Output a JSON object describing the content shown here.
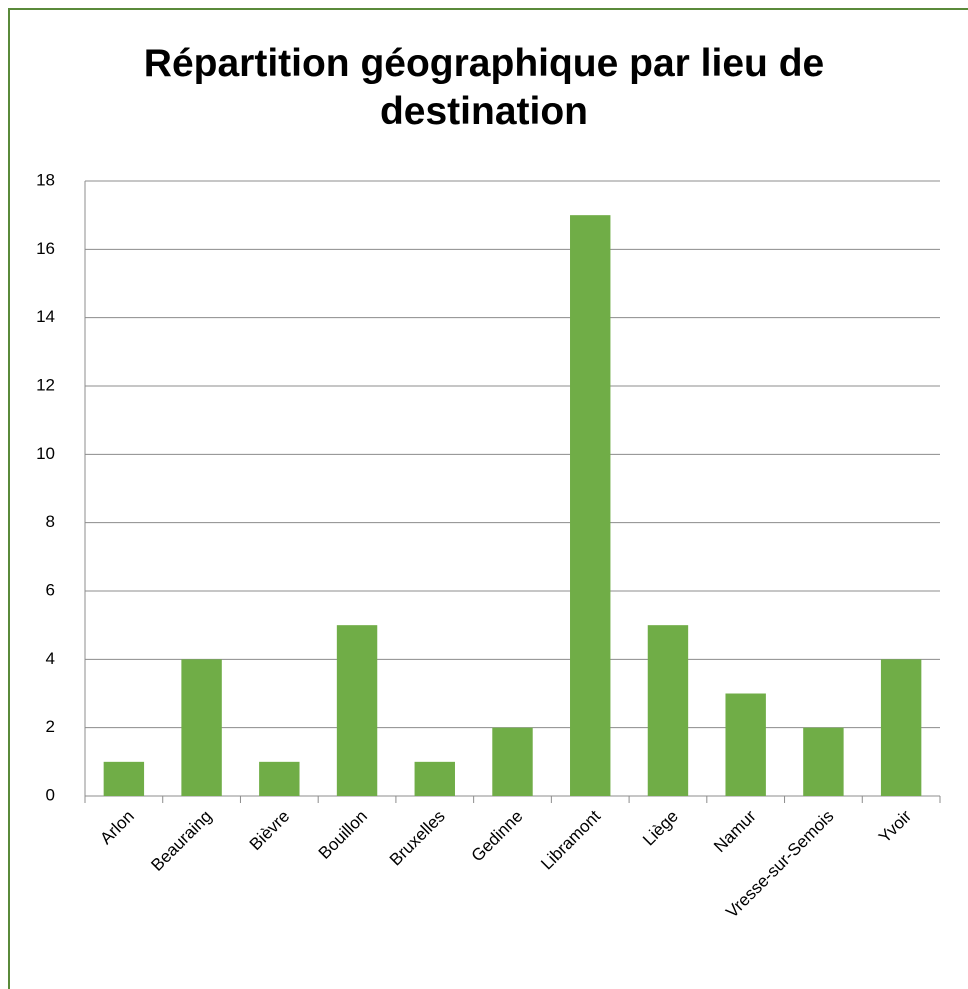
{
  "chart_data": {
    "type": "bar",
    "title": "Répartition géographique par lieu de destination",
    "categories": [
      "Arlon",
      "Beauraing",
      "Bièvre",
      "Bouillon",
      "Bruxelles",
      "Gedinne",
      "Libramont",
      "Liège",
      "Namur",
      "Vresse-sur-Semois",
      "Yvoir"
    ],
    "values": [
      1,
      4,
      1,
      5,
      1,
      2,
      17,
      5,
      3,
      2,
      4
    ],
    "color": "#70ad47",
    "ylim": [
      0,
      18
    ],
    "yticks": [
      0,
      2,
      4,
      6,
      8,
      10,
      12,
      14,
      16,
      18
    ],
    "grid": true
  }
}
